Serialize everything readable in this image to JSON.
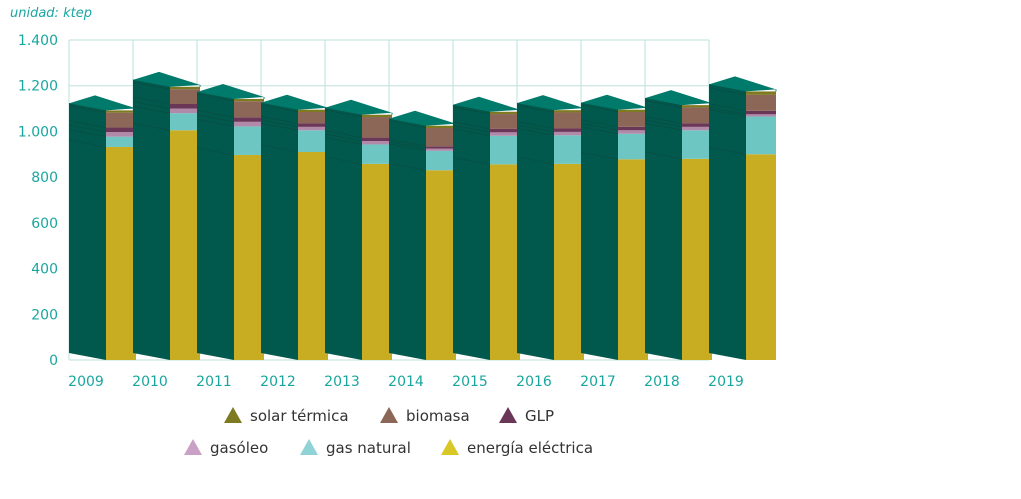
{
  "chart_data": {
    "type": "bar",
    "stacked": true,
    "style": "3d",
    "unit_label": "unidad: ktep",
    "categories": [
      "2009",
      "2010",
      "2011",
      "2012",
      "2013",
      "2014",
      "2015",
      "2016",
      "2017",
      "2018",
      "2019"
    ],
    "ylim": [
      0,
      1400
    ],
    "yticks": [
      0,
      200,
      400,
      600,
      800,
      1000,
      1200,
      1400
    ],
    "ytick_labels": [
      "0",
      "200",
      "400",
      "600",
      "800",
      "1.000",
      "1.200",
      "1.400"
    ],
    "series": [
      {
        "name": "energía eléctrica",
        "color": "#c8ad22",
        "values": [
          932,
          1005,
          897,
          910,
          858,
          830,
          856,
          858,
          878,
          880,
          900
        ]
      },
      {
        "name": "gas natural",
        "color": "#6ec6c2",
        "values": [
          45,
          75,
          125,
          95,
          85,
          85,
          125,
          125,
          112,
          125,
          165
        ]
      },
      {
        "name": "gasóleo",
        "color": "#b08aa8",
        "values": [
          20,
          20,
          20,
          15,
          15,
          10,
          15,
          15,
          15,
          15,
          10
        ]
      },
      {
        "name": "GLP",
        "color": "#6b3758",
        "values": [
          20,
          20,
          20,
          15,
          15,
          10,
          15,
          15,
          15,
          15,
          15
        ]
      },
      {
        "name": "biomasa",
        "color": "#8c6657",
        "values": [
          65,
          65,
          70,
          50,
          90,
          80,
          65,
          70,
          65,
          70,
          70
        ]
      },
      {
        "name": "solar térmica",
        "color": "#7e7a22",
        "values": [
          10,
          10,
          10,
          10,
          10,
          10,
          10,
          10,
          10,
          10,
          15
        ]
      }
    ],
    "legend": {
      "row1": [
        "solar térmica",
        "biomasa",
        "GLP"
      ],
      "row2": [
        "gasóleo",
        "gas natural",
        "energía eléctrica"
      ],
      "marker_colors": {
        "solar térmica": "#7e7a22",
        "biomasa": "#8c6657",
        "GLP": "#6b3758",
        "gasóleo": "#c9a0c6",
        "gas natural": "#8fd3d6",
        "energía eléctrica": "#d9c727"
      }
    },
    "colors": {
      "side_face": "#00594c",
      "top_face": "#007a6a",
      "axis_text": "#1aa6a0",
      "grid": "#bde0dc"
    }
  }
}
